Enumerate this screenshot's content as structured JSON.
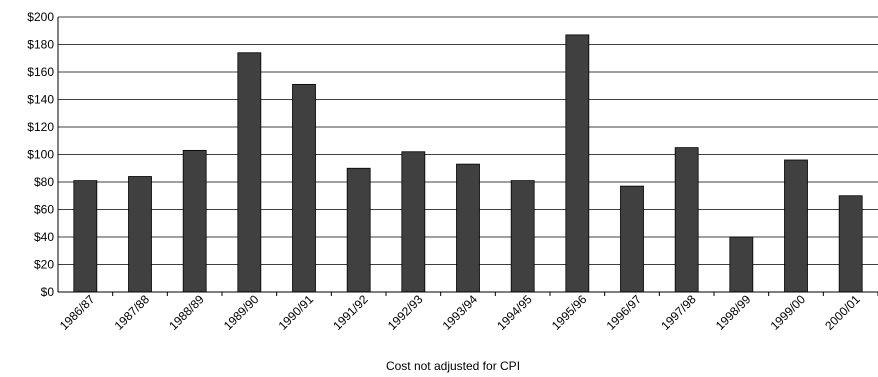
{
  "chart_data": {
    "type": "bar",
    "title": "",
    "xlabel": "Cost not adjusted for CPI",
    "ylabel": "",
    "ylim": [
      0,
      200
    ],
    "ytick_step": 20,
    "y_prefix": "$",
    "grid": true,
    "legend": "none",
    "bar_color": "#404040",
    "categories": [
      "1986/87",
      "1987/88",
      "1988/89",
      "1989/90",
      "1990/91",
      "1991/92",
      "1992/93",
      "1993/94",
      "1994/95",
      "1995/96",
      "1996/97",
      "1997/98",
      "1998/99",
      "1999/00",
      "2000/01"
    ],
    "values": [
      81,
      84,
      103,
      174,
      151,
      90,
      102,
      93,
      81,
      187,
      77,
      105,
      40,
      96,
      70
    ]
  }
}
